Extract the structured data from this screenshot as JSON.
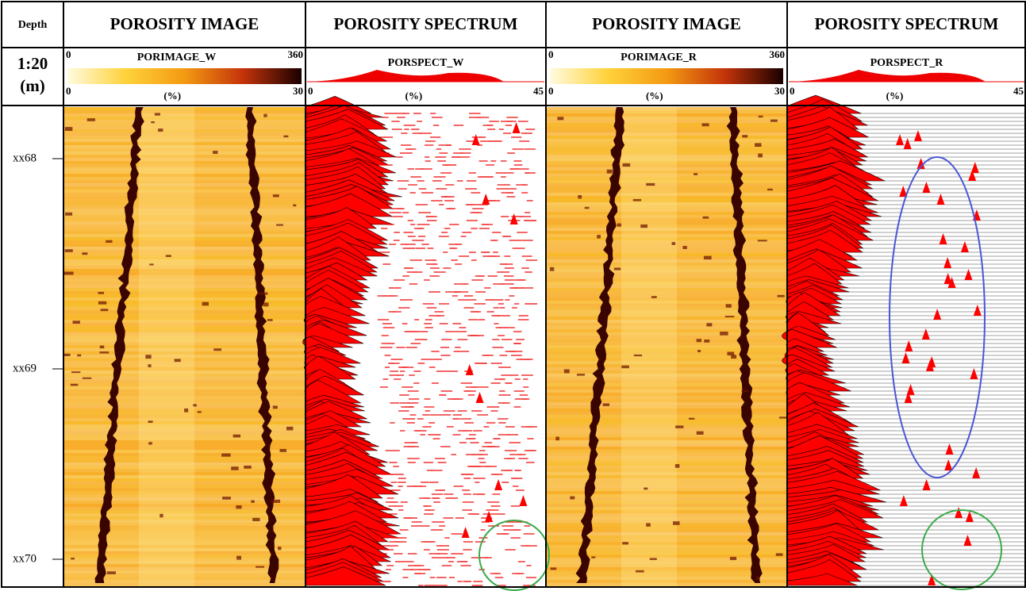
{
  "header": {
    "depth": "Depth",
    "scale": "1:20",
    "unit": "(m)"
  },
  "tracks": [
    {
      "title": "POROSITY IMAGE",
      "curve": "PORIMAGE_W",
      "top_min": "0",
      "top_max": "360",
      "unit_label": "(%)",
      "min": "0",
      "max": "30"
    },
    {
      "title": "POROSITY SPECTRUM",
      "curve": "PORSPECT_W",
      "unit_label": "(%)",
      "min": "0",
      "max": "45"
    },
    {
      "title": "POROSITY IMAGE",
      "curve": "PORIMAGE_R",
      "top_min": "0",
      "top_max": "360",
      "unit_label": "(%)",
      "min": "0",
      "max": "30"
    },
    {
      "title": "POROSITY SPECTRUM",
      "curve": "PORSPECT_R",
      "unit_label": "(%)",
      "min": "0",
      "max": "45"
    }
  ],
  "depth_labels": [
    "xx68",
    "xx69",
    "xx70"
  ]
}
